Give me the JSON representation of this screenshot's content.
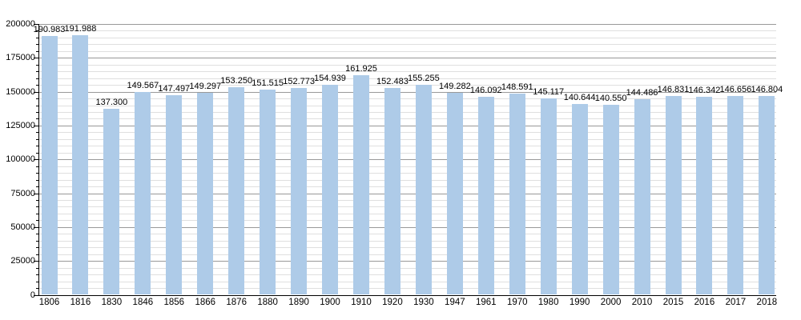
{
  "chart_data": {
    "type": "bar",
    "title": "",
    "xlabel": "",
    "ylabel": "",
    "categories": [
      "1806",
      "1816",
      "1830",
      "1846",
      "1856",
      "1866",
      "1876",
      "1880",
      "1890",
      "1900",
      "1910",
      "1920",
      "1930",
      "1947",
      "1961",
      "1970",
      "1980",
      "1990",
      "2000",
      "2010",
      "2015",
      "2016",
      "2017",
      "2018"
    ],
    "values": [
      190983,
      191988,
      137300,
      149567,
      147497,
      149297,
      153250,
      151515,
      152773,
      154939,
      161925,
      152483,
      155255,
      149282,
      146092,
      148591,
      145117,
      140644,
      140550,
      144486,
      146831,
      146342,
      146656,
      146804
    ],
    "bar_labels": [
      "190.983",
      "191.988",
      "137.300",
      "149.567",
      "147.497",
      "149.297",
      "153.250",
      "151.515",
      "152.773",
      "154.939",
      "161.925",
      "152.483",
      "155.255",
      "149.282",
      "146.092",
      "148.591",
      "145.117",
      "140.644",
      "140.550",
      "144.486",
      "146.831",
      "146.342",
      "146.656",
      "146.804"
    ],
    "ytick_labels": [
      "0",
      "25000",
      "50000",
      "75000",
      "100000",
      "125000",
      "150000",
      "175000",
      "200000"
    ],
    "ylim": [
      0,
      200000
    ],
    "ytick_step": 25000,
    "yminor_step": 5000,
    "grid": "horizontal-only",
    "legend": "none",
    "bar_color": "#AECBE8",
    "major_grid_color": "#999999",
    "minor_grid_color": "#DFDFDF",
    "axis_color": "#000000",
    "text_color": "#000000"
  }
}
